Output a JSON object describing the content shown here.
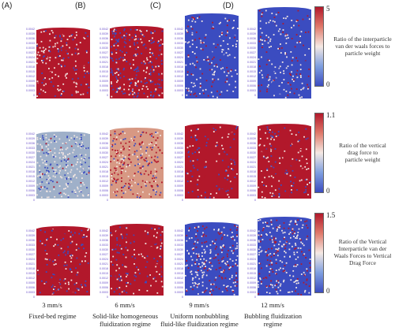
{
  "panel_letters": [
    "(A)",
    "(B)",
    "(C)",
    "(D)"
  ],
  "colorbars": [
    {
      "max": "5",
      "min": "0",
      "label_lines": [
        "Ratio of the interparticle",
        "van der waals forces to",
        "particle weight"
      ]
    },
    {
      "max": "1.1",
      "min": "0",
      "label_lines": [
        "Ratio of the vertical",
        "drag force to",
        "particle weight"
      ]
    },
    {
      "max": "1.5",
      "min": "0",
      "label_lines": [
        "Ratio of the Vertical",
        "Interparticle van der",
        "Waals Forces to Vertical",
        "Drag Force"
      ]
    }
  ],
  "columns": [
    {
      "speed": "3 mm/s",
      "regime_lines": [
        "Fixed-bed regime"
      ]
    },
    {
      "speed": "6 mm/s",
      "regime_lines": [
        "Solid-like homogeneous",
        "fluidization regime"
      ]
    },
    {
      "speed": "9 mm/s",
      "regime_lines": [
        "Uniform nonbubbling",
        "fluid-like fluidization regime"
      ]
    },
    {
      "speed": "12 mm/s",
      "regime_lines": [
        "Bubbling fluidization",
        "regime"
      ]
    }
  ],
  "colors": {
    "red": "#b2182b",
    "blue": "#3b4cc0",
    "light": "#f2e6e2",
    "tick": "#6a4fc9"
  },
  "tick_values": [
    "0.0054",
    "0.0051",
    "0.0048",
    "0.0045",
    "0.0042",
    "0.0039",
    "0.0036",
    "0.0033",
    "0.0030",
    "0.0027",
    "0.0024",
    "0.0021",
    "0.0018",
    "0.0015",
    "0.0012",
    "0.0009",
    "0.0006",
    "0.0003",
    "0"
  ]
}
